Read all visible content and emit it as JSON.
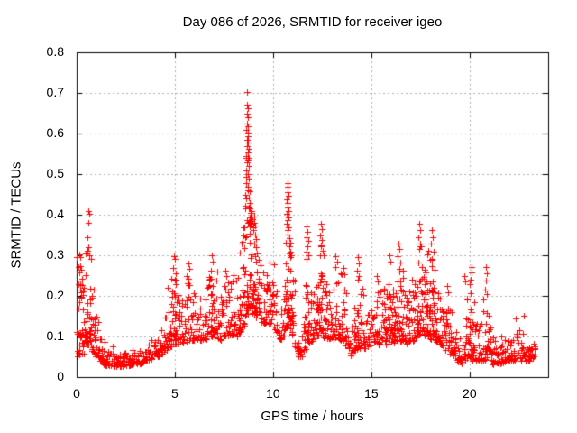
{
  "window": {
    "background": "#ffffff",
    "text_color": "#000000"
  },
  "chart_data": {
    "type": "scatter",
    "title": "Day 086 of 2026, SRMTID for receiver igeo",
    "xlabel": "GPS time / hours",
    "ylabel": "SRMTID / TECUs",
    "xlim": [
      0,
      24
    ],
    "ylim": [
      0,
      0.8
    ],
    "xticks": {
      "values": [
        0,
        5,
        10,
        15,
        20
      ],
      "labels": [
        "0",
        "5",
        "10",
        "15",
        "20"
      ]
    },
    "yticks": {
      "values": [
        0,
        0.1,
        0.2,
        0.3,
        0.4,
        0.5,
        0.6,
        0.7,
        0.8
      ],
      "labels": [
        "0",
        "0.1",
        "0.2",
        "0.3",
        "0.4",
        "0.5",
        "0.6",
        "0.7",
        "0.8"
      ]
    },
    "grid": {
      "show": true,
      "color": "#b0b0b0",
      "dash": [
        2,
        3
      ]
    },
    "border_color": "#000000",
    "marker": {
      "shape": "plus",
      "color": "#ff0000",
      "size": 7
    },
    "data_x_range": [
      0.03,
      23.35
    ],
    "n_columns": 480,
    "seed": 20260086,
    "envelope": [
      [
        0.03,
        0.05,
        0.3
      ],
      [
        0.35,
        0.05,
        0.3
      ],
      [
        0.55,
        0.08,
        0.4
      ],
      [
        0.75,
        0.07,
        0.28
      ],
      [
        1.0,
        0.05,
        0.16
      ],
      [
        1.4,
        0.03,
        0.1
      ],
      [
        2.0,
        0.025,
        0.075
      ],
      [
        3.0,
        0.03,
        0.08
      ],
      [
        3.6,
        0.04,
        0.1
      ],
      [
        4.2,
        0.05,
        0.13
      ],
      [
        4.7,
        0.07,
        0.24
      ],
      [
        5.0,
        0.08,
        0.29
      ],
      [
        5.3,
        0.08,
        0.2
      ],
      [
        5.7,
        0.09,
        0.27
      ],
      [
        6.1,
        0.09,
        0.2
      ],
      [
        6.5,
        0.09,
        0.22
      ],
      [
        6.9,
        0.1,
        0.29
      ],
      [
        7.3,
        0.09,
        0.24
      ],
      [
        7.8,
        0.1,
        0.25
      ],
      [
        8.2,
        0.1,
        0.27
      ],
      [
        8.5,
        0.12,
        0.42
      ],
      [
        8.7,
        0.15,
        0.66
      ],
      [
        8.9,
        0.16,
        0.45
      ],
      [
        9.2,
        0.14,
        0.33
      ],
      [
        9.6,
        0.13,
        0.26
      ],
      [
        10.0,
        0.13,
        0.3
      ],
      [
        10.35,
        0.09,
        0.18
      ],
      [
        10.6,
        0.1,
        0.25
      ],
      [
        10.78,
        0.13,
        0.45
      ],
      [
        11.0,
        0.1,
        0.3
      ],
      [
        11.25,
        0.05,
        0.15
      ],
      [
        11.5,
        0.05,
        0.14
      ],
      [
        11.75,
        0.08,
        0.35
      ],
      [
        12.0,
        0.09,
        0.22
      ],
      [
        12.25,
        0.1,
        0.28
      ],
      [
        12.45,
        0.1,
        0.36
      ],
      [
        12.7,
        0.09,
        0.24
      ],
      [
        13.0,
        0.09,
        0.22
      ],
      [
        13.25,
        0.1,
        0.28
      ],
      [
        13.6,
        0.08,
        0.25
      ],
      [
        13.95,
        0.05,
        0.12
      ],
      [
        14.35,
        0.07,
        0.27
      ],
      [
        14.7,
        0.07,
        0.18
      ],
      [
        15.1,
        0.08,
        0.2
      ],
      [
        15.45,
        0.08,
        0.23
      ],
      [
        15.95,
        0.08,
        0.28
      ],
      [
        16.4,
        0.09,
        0.31
      ],
      [
        16.8,
        0.08,
        0.22
      ],
      [
        17.15,
        0.09,
        0.25
      ],
      [
        17.45,
        0.1,
        0.36
      ],
      [
        17.8,
        0.1,
        0.3
      ],
      [
        18.1,
        0.09,
        0.34
      ],
      [
        18.5,
        0.08,
        0.22
      ],
      [
        18.95,
        0.06,
        0.21
      ],
      [
        19.3,
        0.04,
        0.14
      ],
      [
        19.55,
        0.03,
        0.1
      ],
      [
        19.8,
        0.04,
        0.22
      ],
      [
        20.1,
        0.04,
        0.25
      ],
      [
        20.5,
        0.04,
        0.16
      ],
      [
        20.85,
        0.04,
        0.25
      ],
      [
        21.2,
        0.03,
        0.12
      ],
      [
        21.7,
        0.035,
        0.11
      ],
      [
        22.3,
        0.04,
        0.13
      ],
      [
        22.8,
        0.04,
        0.13
      ],
      [
        23.1,
        0.04,
        0.11
      ],
      [
        23.35,
        0.045,
        0.1
      ]
    ],
    "feature_points": [
      [
        8.66,
        0.702
      ],
      [
        8.68,
        0.672
      ],
      [
        8.7,
        0.662
      ],
      [
        8.67,
        0.648
      ],
      [
        8.72,
        0.64
      ],
      [
        8.69,
        0.625
      ],
      [
        8.73,
        0.618
      ],
      [
        8.65,
        0.61
      ],
      [
        8.71,
        0.602
      ],
      [
        8.74,
        0.594
      ],
      [
        8.68,
        0.585
      ],
      [
        8.72,
        0.578
      ],
      [
        8.66,
        0.57
      ],
      [
        8.75,
        0.562
      ],
      [
        8.7,
        0.553
      ],
      [
        8.64,
        0.545
      ],
      [
        8.73,
        0.536
      ],
      [
        8.69,
        0.528
      ],
      [
        8.76,
        0.52
      ],
      [
        8.63,
        0.51
      ],
      [
        8.71,
        0.5
      ],
      [
        8.78,
        0.488
      ],
      [
        8.62,
        0.478
      ],
      [
        8.74,
        0.47
      ],
      [
        8.8,
        0.458
      ],
      [
        8.6,
        0.45
      ],
      [
        8.77,
        0.442
      ],
      [
        8.83,
        0.43
      ],
      [
        8.58,
        0.422
      ],
      [
        8.81,
        0.415
      ],
      [
        8.86,
        0.405
      ],
      [
        8.88,
        0.395
      ],
      [
        8.92,
        0.408
      ],
      [
        8.95,
        0.39
      ],
      [
        8.9,
        0.378
      ],
      [
        8.98,
        0.37
      ],
      [
        9.02,
        0.395
      ],
      [
        9.05,
        0.38
      ],
      [
        9.0,
        0.362
      ],
      [
        9.08,
        0.352
      ],
      [
        9.12,
        0.34
      ],
      [
        9.06,
        0.33
      ],
      [
        9.15,
        0.32
      ],
      [
        9.2,
        0.305
      ],
      [
        9.1,
        0.298
      ],
      [
        9.25,
        0.29
      ],
      [
        0.58,
        0.41
      ],
      [
        0.63,
        0.402
      ],
      [
        0.6,
        0.38
      ],
      [
        0.57,
        0.345
      ],
      [
        0.55,
        0.312
      ],
      [
        0.62,
        0.3
      ],
      [
        0.13,
        0.302
      ],
      [
        0.18,
        0.295
      ],
      [
        0.1,
        0.272
      ],
      [
        0.22,
        0.265
      ],
      [
        0.15,
        0.258
      ],
      [
        0.28,
        0.242
      ],
      [
        0.09,
        0.228
      ],
      [
        0.2,
        0.215
      ],
      [
        0.25,
        0.198
      ],
      [
        0.12,
        0.185
      ],
      [
        1.02,
        0.148
      ],
      [
        1.08,
        0.135
      ],
      [
        4.95,
        0.298
      ],
      [
        5.02,
        0.292
      ],
      [
        4.9,
        0.268
      ],
      [
        5.05,
        0.255
      ],
      [
        4.98,
        0.24
      ],
      [
        5.68,
        0.28
      ],
      [
        5.74,
        0.266
      ],
      [
        5.62,
        0.25
      ],
      [
        6.88,
        0.3
      ],
      [
        6.94,
        0.285
      ],
      [
        6.82,
        0.262
      ],
      [
        7.58,
        0.262
      ],
      [
        7.64,
        0.25
      ],
      [
        8.42,
        0.33
      ],
      [
        8.48,
        0.348
      ],
      [
        8.52,
        0.368
      ],
      [
        10.72,
        0.478
      ],
      [
        10.76,
        0.468
      ],
      [
        10.74,
        0.455
      ],
      [
        10.78,
        0.446
      ],
      [
        10.7,
        0.438
      ],
      [
        10.75,
        0.428
      ],
      [
        10.73,
        0.418
      ],
      [
        10.77,
        0.41
      ],
      [
        10.71,
        0.402
      ],
      [
        10.79,
        0.394
      ],
      [
        10.74,
        0.386
      ],
      [
        10.68,
        0.378
      ],
      [
        10.8,
        0.37
      ],
      [
        10.76,
        0.362
      ],
      [
        10.72,
        0.352
      ],
      [
        10.82,
        0.342
      ],
      [
        10.66,
        0.332
      ],
      [
        10.85,
        0.322
      ],
      [
        10.88,
        0.31
      ],
      [
        10.92,
        0.3
      ],
      [
        11.72,
        0.372
      ],
      [
        11.76,
        0.358
      ],
      [
        11.7,
        0.345
      ],
      [
        11.78,
        0.335
      ],
      [
        11.74,
        0.322
      ],
      [
        11.68,
        0.31
      ],
      [
        11.8,
        0.3
      ],
      [
        12.42,
        0.378
      ],
      [
        12.47,
        0.365
      ],
      [
        12.4,
        0.35
      ],
      [
        12.5,
        0.338
      ],
      [
        12.44,
        0.325
      ],
      [
        12.52,
        0.312
      ],
      [
        12.38,
        0.3
      ],
      [
        13.18,
        0.298
      ],
      [
        13.24,
        0.285
      ],
      [
        13.15,
        0.272
      ],
      [
        13.58,
        0.268
      ],
      [
        13.63,
        0.254
      ],
      [
        14.32,
        0.295
      ],
      [
        14.38,
        0.28
      ],
      [
        14.28,
        0.262
      ],
      [
        15.28,
        0.248
      ],
      [
        15.34,
        0.235
      ],
      [
        15.92,
        0.3
      ],
      [
        15.98,
        0.284
      ],
      [
        16.38,
        0.33
      ],
      [
        16.44,
        0.315
      ],
      [
        16.35,
        0.298
      ],
      [
        16.48,
        0.282
      ],
      [
        17.42,
        0.378
      ],
      [
        17.47,
        0.362
      ],
      [
        17.4,
        0.345
      ],
      [
        17.5,
        0.33
      ],
      [
        17.44,
        0.315
      ],
      [
        18.08,
        0.362
      ],
      [
        18.12,
        0.345
      ],
      [
        18.05,
        0.328
      ],
      [
        18.15,
        0.31
      ],
      [
        18.1,
        0.292
      ],
      [
        18.88,
        0.225
      ],
      [
        18.92,
        0.21
      ],
      [
        19.72,
        0.25
      ],
      [
        19.78,
        0.235
      ],
      [
        20.08,
        0.272
      ],
      [
        20.12,
        0.258
      ],
      [
        20.05,
        0.24
      ],
      [
        20.82,
        0.272
      ],
      [
        20.88,
        0.255
      ],
      [
        20.85,
        0.238
      ],
      [
        22.78,
        0.152
      ],
      [
        22.35,
        0.145
      ]
    ]
  }
}
